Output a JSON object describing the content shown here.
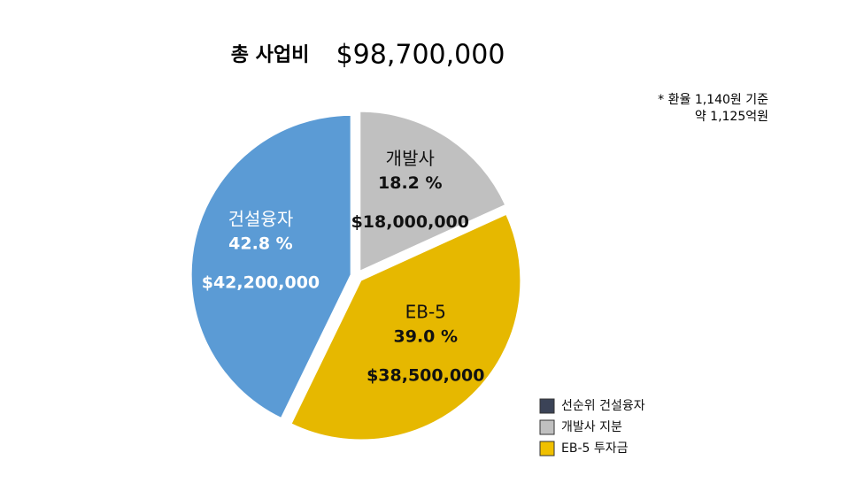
{
  "chart_data": {
    "type": "pie",
    "title": "총 사업비",
    "total": "$98,700,000",
    "notes": [
      "* 환율 1,140원 기준",
      "약 1,125억원"
    ],
    "categories": [
      "개발사",
      "EB-5",
      "건설융자"
    ],
    "values": [
      18.2,
      39.0,
      42.8
    ],
    "value_labels": [
      "18.2 %",
      "39.0 %",
      "42.8 %"
    ],
    "amounts": [
      "$18,000,000",
      "$38,500,000",
      "$42,200,000"
    ],
    "colors": [
      "#c0c0c0",
      "#e6b800",
      "#5b9bd5"
    ],
    "legend": [
      {
        "name": "선순위 건설융자",
        "color": "#3b4357"
      },
      {
        "name": "개발사 지분",
        "color": "#c0c0c0"
      },
      {
        "name": "EB-5 투자금",
        "color": "#f0c000"
      }
    ]
  }
}
